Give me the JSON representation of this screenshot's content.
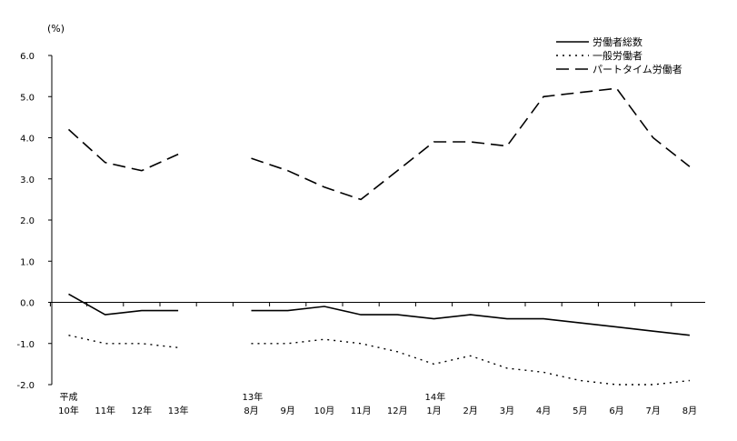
{
  "chart_data": {
    "type": "line",
    "unit_label": "(%)",
    "ylim": [
      -2.0,
      6.0
    ],
    "yticks": [
      "6.0",
      "5.0",
      "4.0",
      "3.0",
      "2.0",
      "1.0",
      "0.0",
      "-1.0",
      "-2.0"
    ],
    "grid": false,
    "legend_position": "top-right",
    "categories": [
      {
        "top": "平成",
        "bottom": "10年"
      },
      {
        "top": "",
        "bottom": "11年"
      },
      {
        "top": "",
        "bottom": "12年"
      },
      {
        "top": "",
        "bottom": "13年"
      },
      {
        "top": "13年",
        "bottom": "8月"
      },
      {
        "top": "",
        "bottom": "9月"
      },
      {
        "top": "",
        "bottom": "10月"
      },
      {
        "top": "",
        "bottom": "11月"
      },
      {
        "top": "",
        "bottom": "12月"
      },
      {
        "top": "14年",
        "bottom": "1月"
      },
      {
        "top": "",
        "bottom": "2月"
      },
      {
        "top": "",
        "bottom": "3月"
      },
      {
        "top": "",
        "bottom": "4月"
      },
      {
        "top": "",
        "bottom": "5月"
      },
      {
        "top": "",
        "bottom": "6月"
      },
      {
        "top": "",
        "bottom": "7月"
      },
      {
        "top": "",
        "bottom": "8月"
      }
    ],
    "x_slots": [
      0,
      1,
      2,
      3,
      5,
      6,
      7,
      8,
      9,
      10,
      11,
      12,
      13,
      14,
      15,
      16,
      17
    ],
    "series": [
      {
        "name": "労働者総数",
        "style": "solid",
        "color": "#000000",
        "values": [
          0.2,
          -0.3,
          -0.2,
          -0.2,
          -0.2,
          -0.2,
          -0.1,
          -0.3,
          -0.3,
          -0.4,
          -0.3,
          -0.4,
          -0.4,
          -0.5,
          -0.6,
          -0.7,
          -0.8
        ]
      },
      {
        "name": "一般労働者",
        "style": "dotted",
        "color": "#000000",
        "values": [
          -0.8,
          -1.0,
          -1.0,
          -1.1,
          -1.0,
          -1.0,
          -0.9,
          -1.0,
          -1.2,
          -1.5,
          -1.3,
          -1.6,
          -1.7,
          -1.9,
          -2.0,
          -2.0,
          -1.9
        ]
      },
      {
        "name": "パートタイム労働者",
        "style": "dashed",
        "color": "#000000",
        "values": [
          4.2,
          3.4,
          3.2,
          3.6,
          3.5,
          3.2,
          2.8,
          2.5,
          3.2,
          3.9,
          3.9,
          3.8,
          5.0,
          5.1,
          5.2,
          4.0,
          3.3
        ]
      }
    ]
  }
}
